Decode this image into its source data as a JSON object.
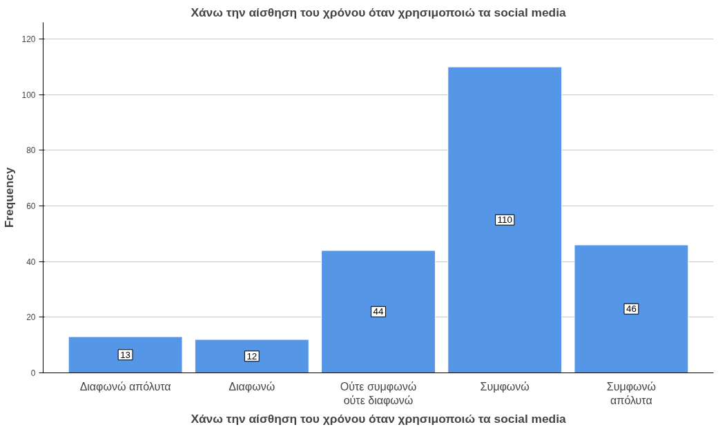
{
  "chart_data": {
    "type": "bar",
    "title": "Χάνω την αίσθηση του χρόνου όταν χρησιμοποιώ τα social media",
    "xlabel": "Χάνω την αίσθηση του χρόνου όταν χρησιμοποιώ τα social media",
    "ylabel": "Frequency",
    "categories": [
      "Διαφωνώ απόλυτα",
      "Διαφωνώ",
      "Ούτε συμφωνώ\nούτε διαφωνώ",
      "Συμφωνώ",
      "Συμφωνώ\nαπόλυτα"
    ],
    "values": [
      13,
      12,
      44,
      110,
      46
    ],
    "color": "#5596e6",
    "ylim": [
      0,
      126
    ],
    "yticks": [
      0,
      20,
      40,
      60,
      80,
      100,
      120
    ],
    "grid": "y",
    "data_labels": true
  }
}
